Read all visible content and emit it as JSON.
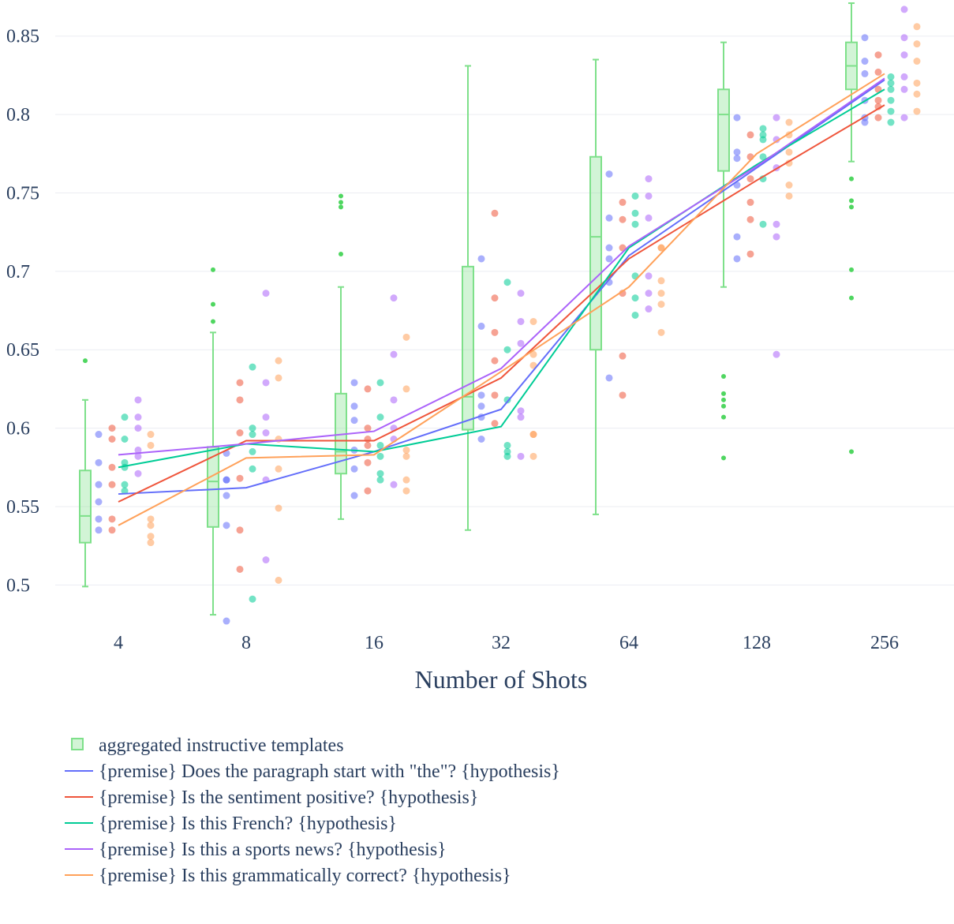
{
  "chart_data": {
    "type": "box+scatter+line",
    "xlabel": "Number of Shots",
    "ylabel": "",
    "categories": [
      "4",
      "8",
      "16",
      "32",
      "64",
      "128",
      "256"
    ],
    "ylim": [
      0.473,
      0.873
    ],
    "yticks": [
      0.5,
      0.55,
      0.6,
      0.65,
      0.7,
      0.75,
      0.8,
      0.85
    ],
    "ytick_labels": [
      "0.5",
      "0.55",
      "0.6",
      "0.65",
      "0.7",
      "0.75",
      "0.8",
      "0.85"
    ],
    "grid": true,
    "legend_position": "bottom-left",
    "box": {
      "name": "aggregated instructive templates",
      "color": "#7ee08a",
      "stats": [
        {
          "lower": 0.499,
          "q1": 0.527,
          "median": 0.544,
          "q3": 0.573,
          "upper": 0.618,
          "outliers": [
            0.643
          ]
        },
        {
          "lower": 0.481,
          "q1": 0.537,
          "median": 0.566,
          "q3": 0.588,
          "upper": 0.661,
          "outliers": [
            0.668,
            0.679,
            0.701
          ]
        },
        {
          "lower": 0.542,
          "q1": 0.571,
          "median": 0.585,
          "q3": 0.622,
          "upper": 0.69,
          "outliers": [
            0.711,
            0.741,
            0.744,
            0.748
          ]
        },
        {
          "lower": 0.535,
          "q1": 0.599,
          "median": 0.62,
          "q3": 0.703,
          "upper": 0.831,
          "outliers": []
        },
        {
          "lower": 0.545,
          "q1": 0.65,
          "median": 0.722,
          "q3": 0.773,
          "upper": 0.835,
          "outliers": []
        },
        {
          "lower": 0.69,
          "q1": 0.764,
          "median": 0.8,
          "q3": 0.816,
          "upper": 0.846,
          "outliers": [
            0.581,
            0.607,
            0.614,
            0.618,
            0.622,
            0.633
          ]
        },
        {
          "lower": 0.77,
          "q1": 0.816,
          "median": 0.831,
          "q3": 0.846,
          "upper": 0.871,
          "outliers": [
            0.585,
            0.683,
            0.701,
            0.741,
            0.745,
            0.759
          ]
        }
      ]
    },
    "series": [
      {
        "name": "{premise} Does the paragraph start with \"the\"? {hypothesis}",
        "color": "#636efa",
        "means": [
          0.558,
          0.562,
          0.585,
          0.612,
          0.71,
          0.766,
          0.822
        ],
        "points": [
          [
            0.596,
            0.578,
            0.564,
            0.553,
            0.542,
            0.535
          ],
          [
            0.584,
            0.567,
            0.557,
            0.538,
            0.477,
            0.567
          ],
          [
            0.629,
            0.614,
            0.605,
            0.586,
            0.574,
            0.557
          ],
          [
            0.708,
            0.665,
            0.621,
            0.614,
            0.607,
            0.593
          ],
          [
            0.762,
            0.734,
            0.715,
            0.708,
            0.693,
            0.632
          ],
          [
            0.798,
            0.776,
            0.772,
            0.755,
            0.722,
            0.708
          ],
          [
            0.849,
            0.834,
            0.826,
            0.809,
            0.798,
            0.795
          ]
        ]
      },
      {
        "name": "{premise} Is the sentiment positive? {hypothesis}",
        "color": "#ef553b",
        "means": [
          0.553,
          0.592,
          0.592,
          0.632,
          0.708,
          0.758,
          0.806
        ],
        "points": [
          [
            0.6,
            0.593,
            0.575,
            0.564,
            0.542,
            0.535
          ],
          [
            0.629,
            0.618,
            0.597,
            0.568,
            0.535,
            0.51
          ],
          [
            0.625,
            0.6,
            0.593,
            0.589,
            0.578,
            0.56
          ],
          [
            0.737,
            0.683,
            0.661,
            0.643,
            0.621,
            0.603
          ],
          [
            0.744,
            0.733,
            0.715,
            0.686,
            0.646,
            0.621
          ],
          [
            0.787,
            0.773,
            0.759,
            0.744,
            0.733,
            0.711
          ],
          [
            0.838,
            0.827,
            0.816,
            0.809,
            0.805,
            0.798
          ]
        ]
      },
      {
        "name": "{premise} Is this French? {hypothesis}",
        "color": "#00cc96",
        "means": [
          0.575,
          0.59,
          0.585,
          0.601,
          0.715,
          0.768,
          0.816
        ],
        "points": [
          [
            0.607,
            0.593,
            0.578,
            0.575,
            0.564,
            0.56
          ],
          [
            0.639,
            0.6,
            0.596,
            0.574,
            0.585,
            0.491
          ],
          [
            0.629,
            0.607,
            0.589,
            0.582,
            0.571,
            0.567
          ],
          [
            0.693,
            0.65,
            0.618,
            0.589,
            0.585,
            0.582
          ],
          [
            0.748,
            0.737,
            0.73,
            0.697,
            0.683,
            0.672
          ],
          [
            0.791,
            0.784,
            0.773,
            0.759,
            0.73,
            0.787
          ],
          [
            0.824,
            0.82,
            0.816,
            0.809,
            0.802,
            0.795
          ]
        ]
      },
      {
        "name": "{premise} Is this a sports news? {hypothesis}",
        "color": "#ab63fa",
        "means": [
          0.583,
          0.59,
          0.598,
          0.638,
          0.716,
          0.767,
          0.823
        ],
        "points": [
          [
            0.618,
            0.607,
            0.6,
            0.586,
            0.582,
            0.571
          ],
          [
            0.686,
            0.629,
            0.607,
            0.597,
            0.567,
            0.516
          ],
          [
            0.683,
            0.647,
            0.618,
            0.6,
            0.593,
            0.564
          ],
          [
            0.686,
            0.668,
            0.654,
            0.611,
            0.607,
            0.582
          ],
          [
            0.759,
            0.748,
            0.734,
            0.697,
            0.686,
            0.676
          ],
          [
            0.798,
            0.784,
            0.766,
            0.73,
            0.722,
            0.647
          ],
          [
            0.867,
            0.849,
            0.838,
            0.824,
            0.816,
            0.798
          ]
        ]
      },
      {
        "name": "{premise} Is this grammatically correct? {hypothesis}",
        "color": "#ffa15a",
        "means": [
          0.538,
          0.581,
          0.583,
          0.636,
          0.69,
          0.775,
          0.826
        ],
        "points": [
          [
            0.596,
            0.589,
            0.542,
            0.538,
            0.531,
            0.527
          ],
          [
            0.643,
            0.632,
            0.593,
            0.574,
            0.549,
            0.503
          ],
          [
            0.658,
            0.625,
            0.586,
            0.582,
            0.567,
            0.56
          ],
          [
            0.668,
            0.647,
            0.64,
            0.596,
            0.596,
            0.582
          ],
          [
            0.694,
            0.686,
            0.679,
            0.661,
            0.715,
            0.715
          ],
          [
            0.795,
            0.787,
            0.776,
            0.769,
            0.755,
            0.748
          ],
          [
            0.856,
            0.845,
            0.834,
            0.82,
            0.813,
            0.802
          ]
        ]
      }
    ]
  }
}
